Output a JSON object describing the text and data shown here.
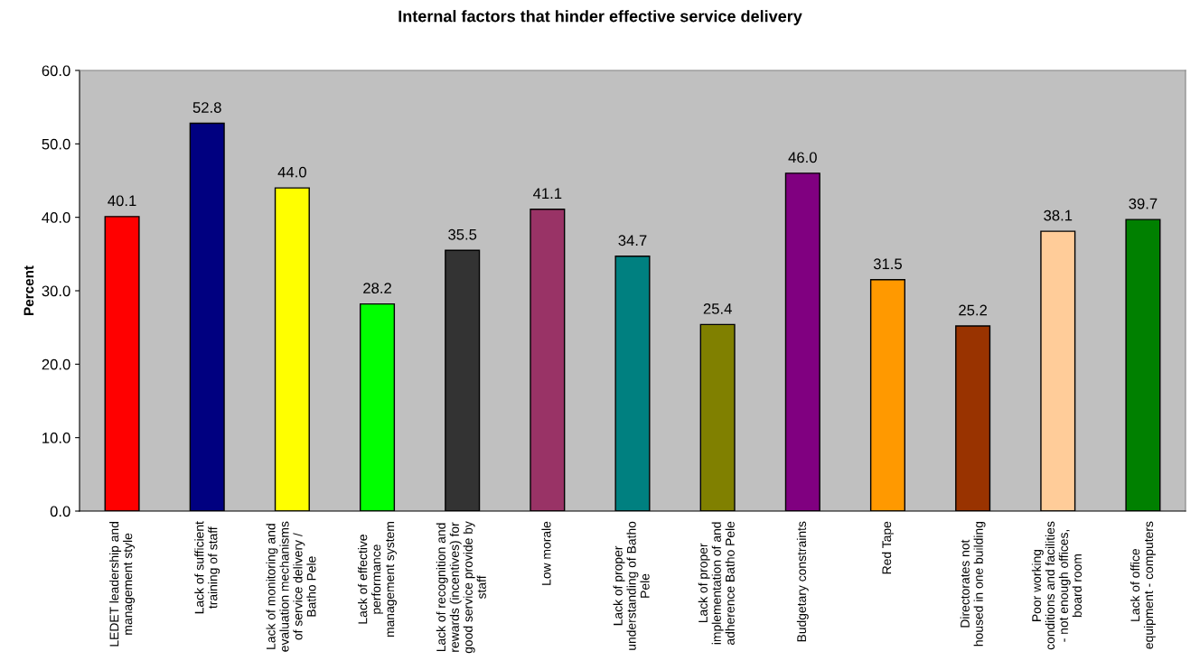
{
  "chart_data": {
    "type": "bar",
    "title": "Internal factors that hinder effective service delivery",
    "ylabel": "Percent",
    "categories": [
      "LEDET leadership and\nmanagement style",
      "Lack of sufficient\ntraining of staff",
      "Lack of monitoring and\nevaluation mechanisms\nof service delivery /\nBatho Pele",
      "Lack of effective\nperformance\nmanagement system",
      "Lack of recognition and\nrewards (incentives) for\ngood service provide by\nstaff",
      "Low morale",
      "Lack of proper\nunderstanding of Batho\nPele",
      "Lack of proper\nimplementation of and\nadherence Batho Pele",
      "Budgetary constraints",
      "Red Tape",
      "Directorates not\nhoused in one building",
      "Poor working\nconditions and facilities\n- not enough offices,\nboard room",
      "Lack of office\nequipment - computers"
    ],
    "values": [
      40.1,
      52.8,
      44.0,
      28.2,
      35.5,
      41.1,
      34.7,
      25.4,
      46.0,
      31.5,
      25.2,
      38.1,
      39.7
    ],
    "value_labels": [
      "40.1",
      "52.8",
      "44.0",
      "28.2",
      "35.5",
      "41.1",
      "34.7",
      "25.4",
      "46.0",
      "31.5",
      "25.2",
      "38.1",
      "39.7"
    ],
    "colors": [
      "#ff0000",
      "#000080",
      "#ffff00",
      "#00ff00",
      "#333333",
      "#993366",
      "#008080",
      "#808000",
      "#800080",
      "#ff9900",
      "#993300",
      "#ffcc99",
      "#008000"
    ],
    "ylim": [
      0,
      60
    ],
    "yticks": [
      {
        "value": 0,
        "label": "0.0"
      },
      {
        "value": 10,
        "label": "10.0"
      },
      {
        "value": 20,
        "label": "20.0"
      },
      {
        "value": 30,
        "label": "30.0"
      },
      {
        "value": 40,
        "label": "40.0"
      },
      {
        "value": 50,
        "label": "50.0"
      },
      {
        "value": 60,
        "label": "60.0"
      }
    ],
    "grid": false,
    "legend": false
  }
}
